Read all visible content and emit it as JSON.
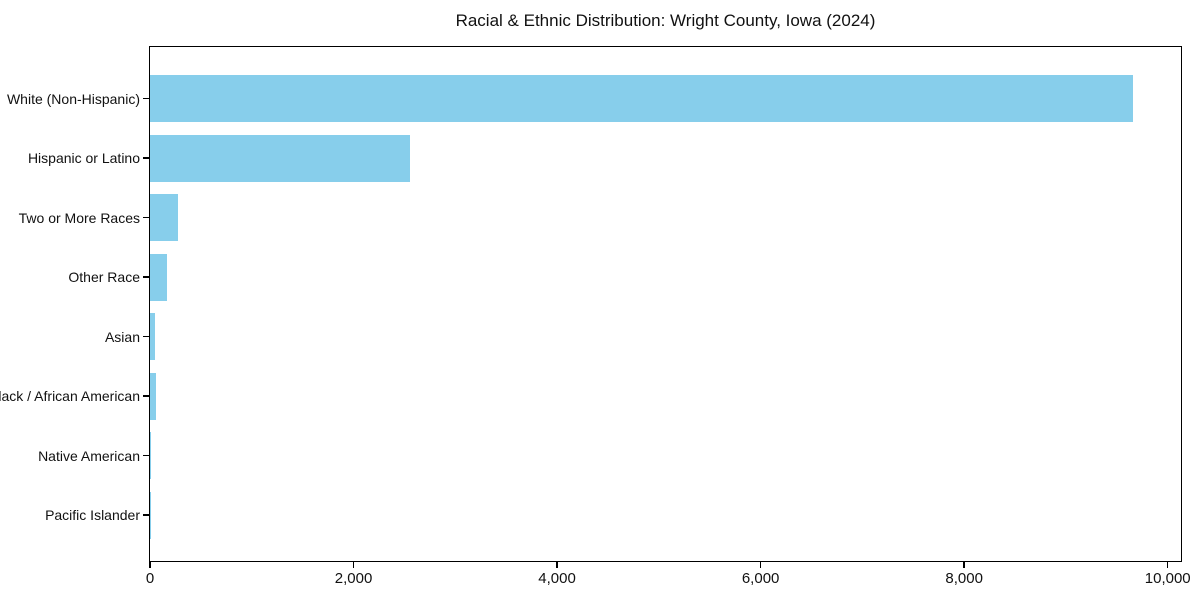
{
  "chart_data": {
    "type": "bar",
    "orientation": "horizontal",
    "title": "Racial & Ethnic Distribution: Wright County, Iowa (2024)",
    "categories": [
      "White (Non-Hispanic)",
      "Hispanic or Latino",
      "Two or More Races",
      "Other Race",
      "Asian",
      "Black / African American",
      "Native American",
      "Pacific Islander"
    ],
    "values": [
      9660,
      2550,
      280,
      170,
      50,
      60,
      10,
      5
    ],
    "xlabel": "",
    "ylabel": "",
    "xlim": [
      0,
      10150
    ],
    "x_ticks": [
      0,
      2000,
      4000,
      6000,
      8000,
      10000
    ],
    "x_tick_labels": [
      "0",
      "2,000",
      "4,000",
      "6,000",
      "8,000",
      "10,000"
    ],
    "grid": false,
    "legend": null,
    "bar_color": "#87CEEB",
    "spine_color": "#000000",
    "text_color": "#111111",
    "background_color": "#ffffff"
  }
}
